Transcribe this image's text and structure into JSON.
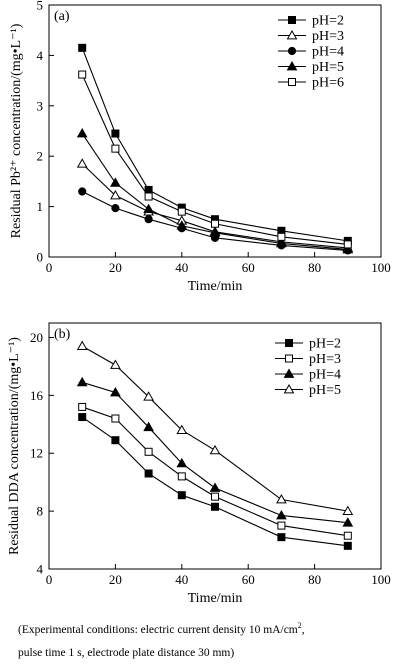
{
  "chart_data": [
    {
      "type": "line",
      "panel_label": "(a)",
      "xlabel": "Time/min",
      "ylabel": "Residual Pb²⁺ concentration/(mg•L⁻¹)",
      "xlim": [
        0,
        100
      ],
      "ylim": [
        0,
        5
      ],
      "x_ticks": [
        0,
        20,
        40,
        60,
        80,
        100
      ],
      "y_ticks": [
        0,
        1,
        2,
        3,
        4,
        5
      ],
      "grid": false,
      "legend_position": "top-right",
      "x": [
        10,
        20,
        30,
        40,
        50,
        70,
        90
      ],
      "series": [
        {
          "name": "pH=2",
          "marker": "square-filled",
          "values": [
            4.15,
            2.45,
            1.33,
            0.98,
            0.75,
            0.52,
            0.32
          ]
        },
        {
          "name": "pH=3",
          "marker": "triangle-open",
          "values": [
            1.85,
            1.22,
            0.9,
            0.72,
            0.5,
            0.3,
            0.18
          ]
        },
        {
          "name": "pH=4",
          "marker": "circle-filled",
          "values": [
            1.3,
            0.97,
            0.75,
            0.57,
            0.38,
            0.23,
            0.13
          ]
        },
        {
          "name": "pH=5",
          "marker": "triangle-filled",
          "values": [
            2.45,
            1.47,
            0.95,
            0.62,
            0.48,
            0.27,
            0.15
          ]
        },
        {
          "name": "pH=6",
          "marker": "square-open",
          "values": [
            3.62,
            2.15,
            1.2,
            0.9,
            0.66,
            0.4,
            0.25
          ]
        }
      ]
    },
    {
      "type": "line",
      "panel_label": "(b)",
      "xlabel": "Time/min",
      "ylabel": "Residual DDA concentration/(mg•L⁻¹)",
      "xlim": [
        0,
        100
      ],
      "ylim": [
        4,
        21
      ],
      "x_ticks": [
        0,
        20,
        40,
        60,
        80,
        100
      ],
      "y_ticks": [
        4,
        8,
        12,
        16,
        20
      ],
      "grid": false,
      "legend_position": "top-right",
      "x": [
        10,
        20,
        30,
        40,
        50,
        70,
        90
      ],
      "series": [
        {
          "name": "pH=2",
          "marker": "square-filled",
          "values": [
            14.5,
            12.9,
            10.6,
            9.1,
            8.3,
            6.2,
            5.6
          ]
        },
        {
          "name": "pH=3",
          "marker": "square-open",
          "values": [
            15.2,
            14.4,
            12.1,
            10.4,
            9.0,
            7.0,
            6.3
          ]
        },
        {
          "name": "pH=4",
          "marker": "triangle-filled",
          "values": [
            16.9,
            16.2,
            13.8,
            11.3,
            9.6,
            7.7,
            7.2
          ]
        },
        {
          "name": "pH=5",
          "marker": "triangle-open",
          "values": [
            19.4,
            18.1,
            15.9,
            13.6,
            12.2,
            8.8,
            8.0
          ]
        }
      ]
    }
  ],
  "caption": {
    "line1_pre": "(Experimental conditions: electric current density 10 mA/cm",
    "line1_sup": "2",
    "line1_post": ",",
    "line2": "pulse time 1 s, electrode plate distance 30 mm)"
  }
}
